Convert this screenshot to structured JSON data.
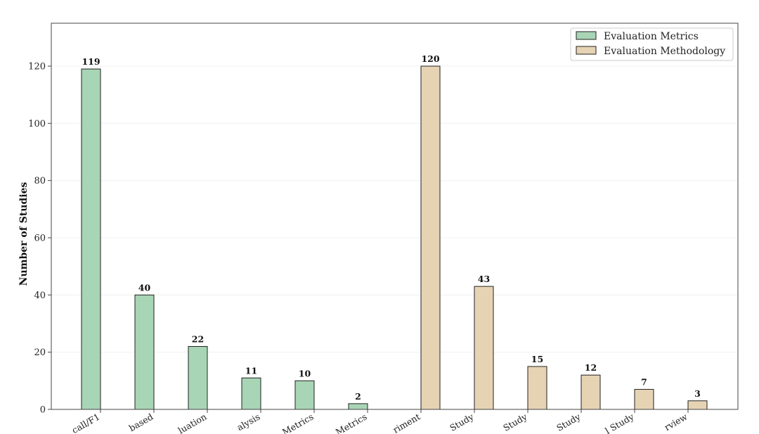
{
  "chart_data": {
    "type": "bar",
    "ylabel": "Number of Studies",
    "ylim": [
      0,
      135
    ],
    "yticks": [
      0,
      20,
      40,
      60,
      80,
      100,
      120
    ],
    "grid": "horizontal, faint",
    "legend_placement": "top-right",
    "categories": [
      "call/F1",
      "based",
      "luation",
      "alysis",
      "Metrics",
      "Metrics",
      "riment",
      "Study",
      "Study",
      "Study",
      "l Study",
      "rview"
    ],
    "series": [
      {
        "name": "Evaluation Metrics",
        "color": "#a8d5b5",
        "values": [
          119,
          40,
          22,
          11,
          10,
          2,
          0,
          0,
          0,
          0,
          0,
          0
        ]
      },
      {
        "name": "Evaluation Methodology",
        "color": "#e6d3b3",
        "values": [
          0,
          0,
          0,
          0,
          0,
          0,
          120,
          43,
          15,
          12,
          7,
          3
        ]
      }
    ]
  }
}
